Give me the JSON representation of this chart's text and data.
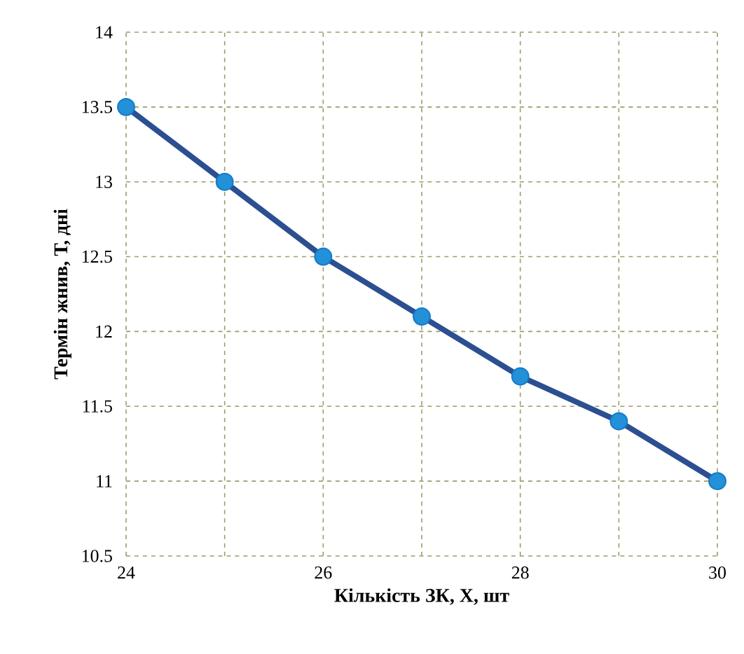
{
  "chart_data": {
    "type": "line",
    "xlabel": "Кількість ЗК, Х, шт",
    "ylabel": "Термін жнив, Т, дні",
    "x": [
      24,
      25,
      26,
      27,
      28,
      29,
      30
    ],
    "series": [
      {
        "color": "#2b4f91",
        "values": [
          13.5,
          13.0,
          12.5,
          12.1,
          11.7,
          11.4,
          11.0
        ]
      }
    ],
    "xlim": [
      24,
      30
    ],
    "xticks": [
      24,
      {
        "value": 25,
        "label": null
      },
      26,
      {
        "value": 27,
        "label": null
      },
      28,
      {
        "value": 29,
        "label": null
      },
      30
    ],
    "ylim": [
      10.5,
      14
    ],
    "yticks": [
      10.5,
      11,
      11.5,
      12,
      12.5,
      13,
      13.5,
      14
    ],
    "grid": true,
    "marker": "circle",
    "line_style": "solid"
  }
}
